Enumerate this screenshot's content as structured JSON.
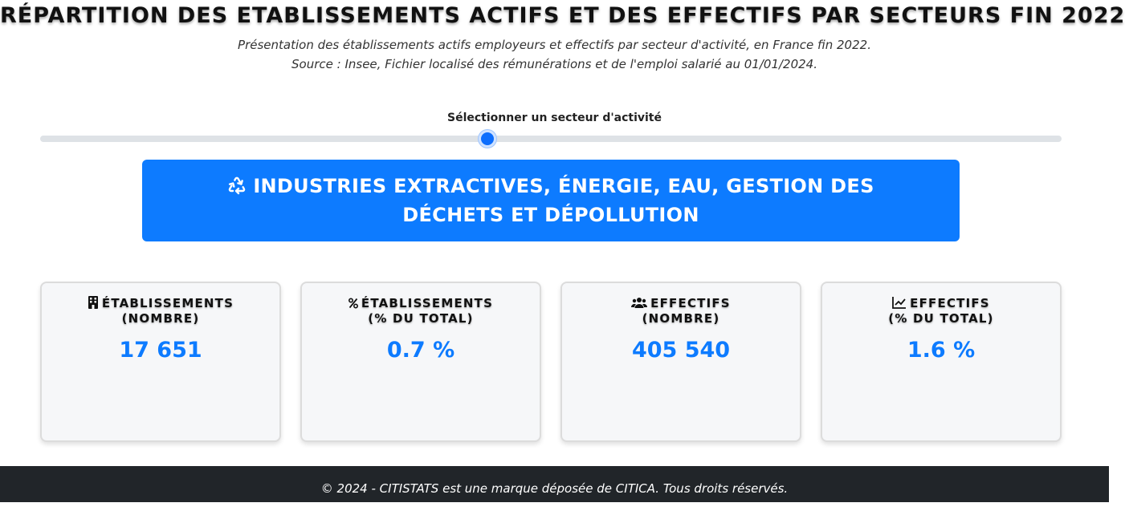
{
  "header": {
    "title": "RÉPARTITION DES ETABLISSEMENTS ACTIFS ET DES EFFECTIFS PAR SECTEURS FIN 2022",
    "subtitle_line1": "Présentation des établissements actifs employeurs et effectifs par secteur d'activité, en France fin 2022.",
    "subtitle_line2": "Source : Insee, Fichier localisé des rémunérations et de l'emploi salarié au 01/01/2024."
  },
  "slider": {
    "label": "Sélectionner un secteur d'activité",
    "position_fraction": 0.438
  },
  "sector": {
    "icon": "recycle-icon",
    "name": "INDUSTRIES EXTRACTIVES, ÉNERGIE, EAU, GESTION DES DÉCHETS ET DÉPOLLUTION"
  },
  "cards": [
    {
      "icon": "building-icon",
      "title_line1": "ÉTABLISSEMENTS",
      "title_line2": "(NOMBRE)",
      "value": "17 651"
    },
    {
      "icon": "percent-icon",
      "title_line1": "ÉTABLISSEMENTS",
      "title_line2": "(% DU TOTAL)",
      "value": "0.7 %"
    },
    {
      "icon": "users-icon",
      "title_line1": "EFFECTIFS",
      "title_line2": "(NOMBRE)",
      "value": "405 540"
    },
    {
      "icon": "chart-line-icon",
      "title_line1": "EFFECTIFS",
      "title_line2": "(% DU TOTAL)",
      "value": "1.6 %"
    }
  ],
  "footer": {
    "text": "© 2024 - CITISTATS est une marque déposée de CITICA. Tous droits réservés."
  },
  "colors": {
    "accent": "#0d7bff",
    "footer_bg": "#212529",
    "card_bg": "#f6f7f9"
  }
}
